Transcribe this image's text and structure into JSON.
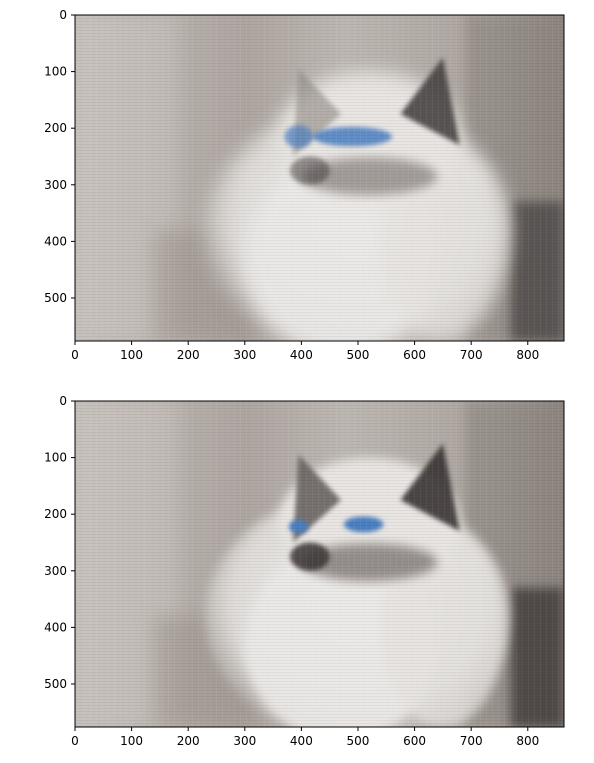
{
  "chart_data": [
    {
      "type": "image",
      "image_shape": [
        576,
        864
      ],
      "xlim": [
        0,
        864
      ],
      "ylim": [
        576,
        0
      ],
      "xticks": [
        0,
        100,
        200,
        300,
        400,
        500,
        600,
        700,
        800
      ],
      "yticks": [
        0,
        100,
        200,
        300,
        400,
        500
      ],
      "x_tick_labels": [
        "0",
        "100",
        "200",
        "300",
        "400",
        "500",
        "600",
        "700",
        "800"
      ],
      "y_tick_labels": [
        "0",
        "100",
        "200",
        "300",
        "400",
        "500"
      ],
      "content": "blurred low-rank reconstruction of a cat photo",
      "colors": {
        "background": "#b9b2ac",
        "fur": "#eceae8",
        "eyes": "#4a7ec0",
        "dark": "#4a4545"
      }
    },
    {
      "type": "image",
      "image_shape": [
        576,
        864
      ],
      "xlim": [
        0,
        864
      ],
      "ylim": [
        576,
        0
      ],
      "xticks": [
        0,
        100,
        200,
        300,
        400,
        500,
        600,
        700,
        800
      ],
      "yticks": [
        0,
        100,
        200,
        300,
        400,
        500
      ],
      "x_tick_labels": [
        "0",
        "100",
        "200",
        "300",
        "400",
        "500",
        "600",
        "700",
        "800"
      ],
      "y_tick_labels": [
        "0",
        "100",
        "200",
        "300",
        "400",
        "500"
      ],
      "content": "sharper low-rank reconstruction of a cat photo",
      "colors": {
        "background": "#b9b2ac",
        "fur": "#eceae8",
        "eyes": "#4a7ec0",
        "dark": "#3a3535"
      }
    }
  ]
}
